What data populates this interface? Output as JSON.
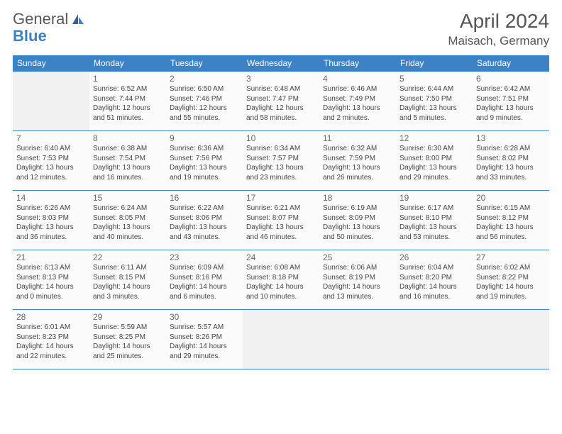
{
  "logo": {
    "text1": "General",
    "text2": "Blue"
  },
  "title": "April 2024",
  "location": "Maisach, Germany",
  "colors": {
    "accent": "#3d82c4",
    "text": "#444444",
    "bg": "#ffffff"
  },
  "day_headers": [
    "Sunday",
    "Monday",
    "Tuesday",
    "Wednesday",
    "Thursday",
    "Friday",
    "Saturday"
  ],
  "weeks": [
    [
      null,
      {
        "n": "1",
        "sr": "Sunrise: 6:52 AM",
        "ss": "Sunset: 7:44 PM",
        "d1": "Daylight: 12 hours",
        "d2": "and 51 minutes."
      },
      {
        "n": "2",
        "sr": "Sunrise: 6:50 AM",
        "ss": "Sunset: 7:46 PM",
        "d1": "Daylight: 12 hours",
        "d2": "and 55 minutes."
      },
      {
        "n": "3",
        "sr": "Sunrise: 6:48 AM",
        "ss": "Sunset: 7:47 PM",
        "d1": "Daylight: 12 hours",
        "d2": "and 58 minutes."
      },
      {
        "n": "4",
        "sr": "Sunrise: 6:46 AM",
        "ss": "Sunset: 7:49 PM",
        "d1": "Daylight: 13 hours",
        "d2": "and 2 minutes."
      },
      {
        "n": "5",
        "sr": "Sunrise: 6:44 AM",
        "ss": "Sunset: 7:50 PM",
        "d1": "Daylight: 13 hours",
        "d2": "and 5 minutes."
      },
      {
        "n": "6",
        "sr": "Sunrise: 6:42 AM",
        "ss": "Sunset: 7:51 PM",
        "d1": "Daylight: 13 hours",
        "d2": "and 9 minutes."
      }
    ],
    [
      {
        "n": "7",
        "sr": "Sunrise: 6:40 AM",
        "ss": "Sunset: 7:53 PM",
        "d1": "Daylight: 13 hours",
        "d2": "and 12 minutes."
      },
      {
        "n": "8",
        "sr": "Sunrise: 6:38 AM",
        "ss": "Sunset: 7:54 PM",
        "d1": "Daylight: 13 hours",
        "d2": "and 16 minutes."
      },
      {
        "n": "9",
        "sr": "Sunrise: 6:36 AM",
        "ss": "Sunset: 7:56 PM",
        "d1": "Daylight: 13 hours",
        "d2": "and 19 minutes."
      },
      {
        "n": "10",
        "sr": "Sunrise: 6:34 AM",
        "ss": "Sunset: 7:57 PM",
        "d1": "Daylight: 13 hours",
        "d2": "and 23 minutes."
      },
      {
        "n": "11",
        "sr": "Sunrise: 6:32 AM",
        "ss": "Sunset: 7:59 PM",
        "d1": "Daylight: 13 hours",
        "d2": "and 26 minutes."
      },
      {
        "n": "12",
        "sr": "Sunrise: 6:30 AM",
        "ss": "Sunset: 8:00 PM",
        "d1": "Daylight: 13 hours",
        "d2": "and 29 minutes."
      },
      {
        "n": "13",
        "sr": "Sunrise: 6:28 AM",
        "ss": "Sunset: 8:02 PM",
        "d1": "Daylight: 13 hours",
        "d2": "and 33 minutes."
      }
    ],
    [
      {
        "n": "14",
        "sr": "Sunrise: 6:26 AM",
        "ss": "Sunset: 8:03 PM",
        "d1": "Daylight: 13 hours",
        "d2": "and 36 minutes."
      },
      {
        "n": "15",
        "sr": "Sunrise: 6:24 AM",
        "ss": "Sunset: 8:05 PM",
        "d1": "Daylight: 13 hours",
        "d2": "and 40 minutes."
      },
      {
        "n": "16",
        "sr": "Sunrise: 6:22 AM",
        "ss": "Sunset: 8:06 PM",
        "d1": "Daylight: 13 hours",
        "d2": "and 43 minutes."
      },
      {
        "n": "17",
        "sr": "Sunrise: 6:21 AM",
        "ss": "Sunset: 8:07 PM",
        "d1": "Daylight: 13 hours",
        "d2": "and 46 minutes."
      },
      {
        "n": "18",
        "sr": "Sunrise: 6:19 AM",
        "ss": "Sunset: 8:09 PM",
        "d1": "Daylight: 13 hours",
        "d2": "and 50 minutes."
      },
      {
        "n": "19",
        "sr": "Sunrise: 6:17 AM",
        "ss": "Sunset: 8:10 PM",
        "d1": "Daylight: 13 hours",
        "d2": "and 53 minutes."
      },
      {
        "n": "20",
        "sr": "Sunrise: 6:15 AM",
        "ss": "Sunset: 8:12 PM",
        "d1": "Daylight: 13 hours",
        "d2": "and 56 minutes."
      }
    ],
    [
      {
        "n": "21",
        "sr": "Sunrise: 6:13 AM",
        "ss": "Sunset: 8:13 PM",
        "d1": "Daylight: 14 hours",
        "d2": "and 0 minutes."
      },
      {
        "n": "22",
        "sr": "Sunrise: 6:11 AM",
        "ss": "Sunset: 8:15 PM",
        "d1": "Daylight: 14 hours",
        "d2": "and 3 minutes."
      },
      {
        "n": "23",
        "sr": "Sunrise: 6:09 AM",
        "ss": "Sunset: 8:16 PM",
        "d1": "Daylight: 14 hours",
        "d2": "and 6 minutes."
      },
      {
        "n": "24",
        "sr": "Sunrise: 6:08 AM",
        "ss": "Sunset: 8:18 PM",
        "d1": "Daylight: 14 hours",
        "d2": "and 10 minutes."
      },
      {
        "n": "25",
        "sr": "Sunrise: 6:06 AM",
        "ss": "Sunset: 8:19 PM",
        "d1": "Daylight: 14 hours",
        "d2": "and 13 minutes."
      },
      {
        "n": "26",
        "sr": "Sunrise: 6:04 AM",
        "ss": "Sunset: 8:20 PM",
        "d1": "Daylight: 14 hours",
        "d2": "and 16 minutes."
      },
      {
        "n": "27",
        "sr": "Sunrise: 6:02 AM",
        "ss": "Sunset: 8:22 PM",
        "d1": "Daylight: 14 hours",
        "d2": "and 19 minutes."
      }
    ],
    [
      {
        "n": "28",
        "sr": "Sunrise: 6:01 AM",
        "ss": "Sunset: 8:23 PM",
        "d1": "Daylight: 14 hours",
        "d2": "and 22 minutes."
      },
      {
        "n": "29",
        "sr": "Sunrise: 5:59 AM",
        "ss": "Sunset: 8:25 PM",
        "d1": "Daylight: 14 hours",
        "d2": "and 25 minutes."
      },
      {
        "n": "30",
        "sr": "Sunrise: 5:57 AM",
        "ss": "Sunset: 8:26 PM",
        "d1": "Daylight: 14 hours",
        "d2": "and 29 minutes."
      },
      null,
      null,
      null,
      null
    ]
  ]
}
